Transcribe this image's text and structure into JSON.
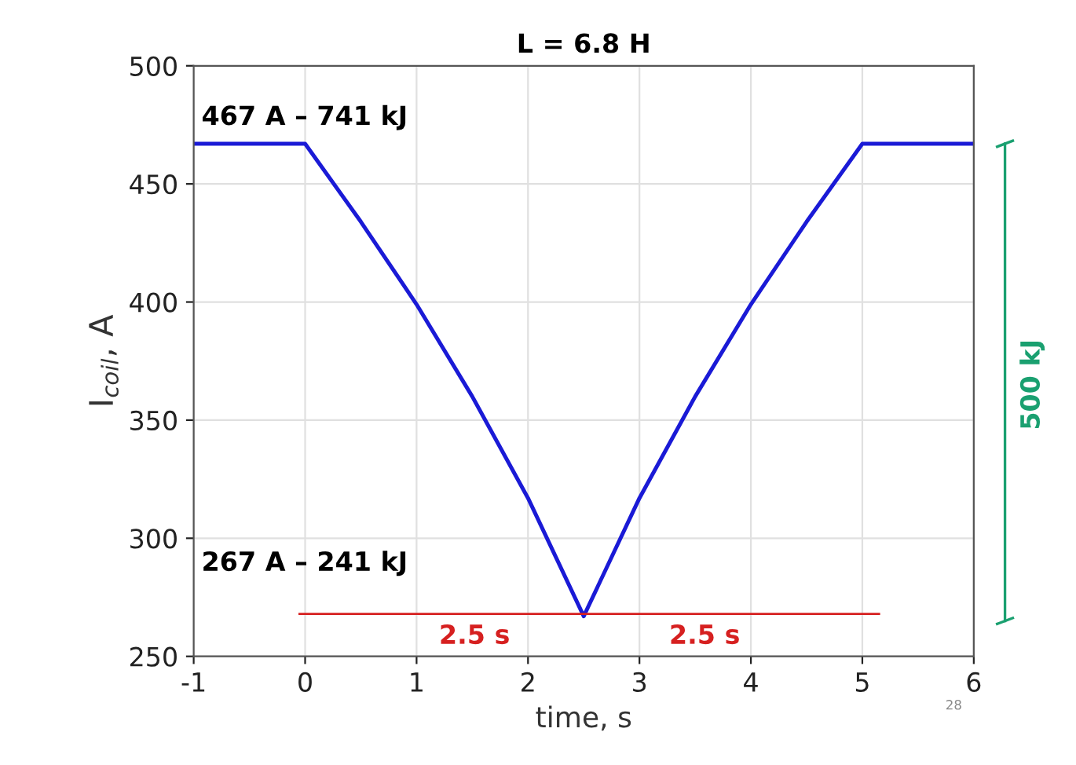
{
  "chart_data": {
    "type": "line",
    "title": "L = 6.8 H",
    "xlabel": "time, s",
    "ylabel": "I$_{coil}$, A",
    "x": [
      -1,
      0,
      0.5,
      1,
      1.5,
      2,
      2.5,
      3,
      3.5,
      4,
      4.5,
      5,
      6
    ],
    "series": [
      {
        "color": "#1a1ad6",
        "values": [
          467,
          467,
          434,
          399,
          360,
          317,
          267,
          317,
          360,
          399,
          434,
          467,
          467
        ]
      },
      {
        "color": "#d62020",
        "x": [
          -0.05,
          5.15
        ],
        "values": [
          268,
          268
        ]
      }
    ],
    "xlim": [
      -1,
      6
    ],
    "ylim": [
      250,
      500
    ],
    "xticks": [
      -1,
      0,
      1,
      2,
      3,
      4,
      5,
      6
    ],
    "yticks": [
      250,
      300,
      350,
      400,
      450,
      500
    ],
    "grid": true,
    "marker": "none",
    "line_style": "solid",
    "annotations": [
      "467 A – 741 kJ",
      "267 A – 241 kJ",
      "500 kJ",
      "28",
      "2.5 s",
      "2.5 s"
    ]
  }
}
